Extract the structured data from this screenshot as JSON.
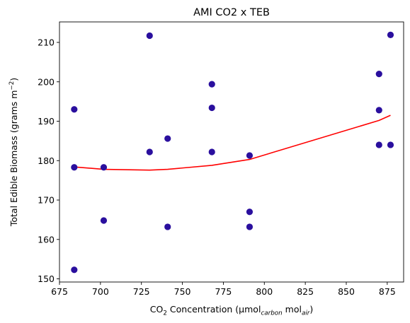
{
  "chart_data": {
    "type": "scatter",
    "title": "AMI CO2 x TEB",
    "xlabel": {
      "parts": [
        {
          "text": "CO",
          "style": "normal"
        },
        {
          "text": "2",
          "style": "sub"
        },
        {
          "text": " Concentration (µmol",
          "style": "normal"
        },
        {
          "text": "carbon",
          "style": "sub-italic"
        },
        {
          "text": " mol",
          "style": "normal"
        },
        {
          "text": "air",
          "style": "sub-italic"
        },
        {
          "text": ")",
          "style": "normal"
        }
      ]
    },
    "ylabel": {
      "parts": [
        {
          "text": "Total Edible Biomass (grams m",
          "style": "normal"
        },
        {
          "text": "−2",
          "style": "sup"
        },
        {
          "text": ")",
          "style": "normal"
        }
      ]
    },
    "xlim": [
      675,
      885
    ],
    "ylim": [
      149.2,
      215.2
    ],
    "xticks": [
      675,
      700,
      725,
      750,
      775,
      800,
      825,
      850,
      875
    ],
    "xtick_labels": [
      "675",
      "700",
      "725",
      "750",
      "775",
      "800",
      "825",
      "850",
      "875"
    ],
    "yticks": [
      150,
      160,
      170,
      180,
      190,
      200,
      210
    ],
    "ytick_labels": [
      "150",
      "160",
      "170",
      "180",
      "190",
      "200",
      "210"
    ],
    "grid": false,
    "colors": {
      "points": "#2a0f9e",
      "trend": "#ff0000",
      "axes": "#000000",
      "background": "#ffffff"
    },
    "series": [
      {
        "name": "observations",
        "kind": "scatter",
        "points": [
          {
            "x": 684,
            "y": 193.0
          },
          {
            "x": 684,
            "y": 178.3
          },
          {
            "x": 684,
            "y": 152.3
          },
          {
            "x": 702,
            "y": 178.3
          },
          {
            "x": 702,
            "y": 164.8
          },
          {
            "x": 730,
            "y": 211.7
          },
          {
            "x": 730,
            "y": 182.2
          },
          {
            "x": 741,
            "y": 185.6
          },
          {
            "x": 741,
            "y": 163.2
          },
          {
            "x": 768,
            "y": 199.4
          },
          {
            "x": 768,
            "y": 193.4
          },
          {
            "x": 768,
            "y": 182.2
          },
          {
            "x": 791,
            "y": 181.3
          },
          {
            "x": 791,
            "y": 167.0
          },
          {
            "x": 791,
            "y": 163.2
          },
          {
            "x": 870,
            "y": 202.0
          },
          {
            "x": 870,
            "y": 192.8
          },
          {
            "x": 870,
            "y": 184.0
          },
          {
            "x": 877,
            "y": 211.9
          },
          {
            "x": 877,
            "y": 184.0
          }
        ]
      },
      {
        "name": "trend",
        "kind": "line",
        "points": [
          {
            "x": 684,
            "y": 178.4
          },
          {
            "x": 702,
            "y": 177.8
          },
          {
            "x": 730,
            "y": 177.6
          },
          {
            "x": 741,
            "y": 177.8
          },
          {
            "x": 768,
            "y": 178.8
          },
          {
            "x": 791,
            "y": 180.3
          },
          {
            "x": 870,
            "y": 190.2
          },
          {
            "x": 877,
            "y": 191.5
          }
        ]
      }
    ]
  }
}
